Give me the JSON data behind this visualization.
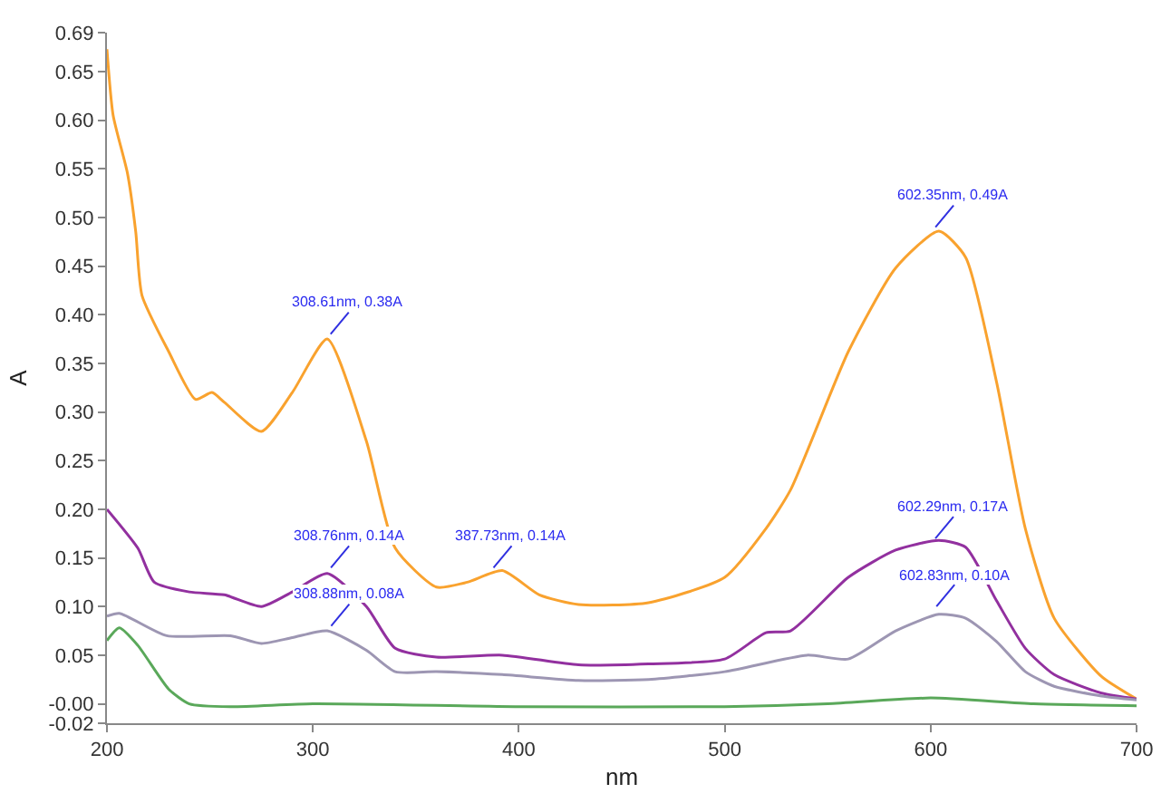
{
  "chart_data": {
    "type": "line",
    "xlabel": "nm",
    "ylabel": "A",
    "xlim": [
      200,
      700
    ],
    "xticks": [
      200,
      300,
      400,
      500,
      600,
      700
    ],
    "ylim": [
      -0.02,
      0.69
    ],
    "yticks": [
      {
        "value": -0.02,
        "label": "-0.02"
      },
      {
        "value": 0,
        "label": "-0.00"
      },
      0.05,
      {
        "value": 0.1,
        "label": "0.10"
      },
      0.15,
      {
        "value": 0.2,
        "label": "0.20"
      },
      0.25,
      {
        "value": 0.3,
        "label": "0.30"
      },
      0.35,
      {
        "value": 0.4,
        "label": "0.40"
      },
      0.45,
      {
        "value": 0.5,
        "label": "0.50"
      },
      0.55,
      {
        "value": 0.6,
        "label": "0.60"
      },
      0.65,
      0.69
    ],
    "marker": "none",
    "line_style": "solid",
    "series": [
      {
        "color": "#f9a22e",
        "x": [
          200,
          203,
          210,
          214,
          217,
          230,
          243,
          251,
          257,
          275,
          290,
          307,
          326,
          340,
          360,
          375,
          392,
          410,
          429,
          463,
          500,
          520,
          532,
          560,
          583,
          604,
          617,
          632,
          646,
          660,
          683,
          700
        ],
        "values": [
          0.673,
          0.605,
          0.545,
          0.485,
          0.42,
          0.362,
          0.313,
          0.32,
          0.31,
          0.28,
          0.32,
          0.375,
          0.27,
          0.16,
          0.12,
          0.125,
          0.137,
          0.112,
          0.102,
          0.104,
          0.13,
          0.18,
          0.22,
          0.362,
          0.448,
          0.486,
          0.459,
          0.331,
          0.18,
          0.088,
          0.028,
          0.005
        ]
      },
      {
        "color": "#92309f",
        "x": [
          200,
          215,
          223,
          240,
          257,
          275,
          290,
          307,
          326,
          340,
          360,
          392,
          429,
          463,
          500,
          520,
          532,
          560,
          583,
          604,
          617,
          632,
          646,
          660,
          683,
          700
        ],
        "values": [
          0.2,
          0.16,
          0.125,
          0.115,
          0.112,
          0.1,
          0.115,
          0.134,
          0.1,
          0.057,
          0.048,
          0.05,
          0.04,
          0.041,
          0.046,
          0.073,
          0.075,
          0.13,
          0.158,
          0.168,
          0.161,
          0.106,
          0.057,
          0.03,
          0.011,
          0.005
        ]
      },
      {
        "color": "#9d96b3",
        "x": [
          200,
          206,
          229,
          260,
          275,
          290,
          307,
          326,
          340,
          360,
          392,
          429,
          463,
          500,
          540,
          560,
          583,
          604,
          617,
          632,
          646,
          660,
          683,
          700
        ],
        "values": [
          0.09,
          0.093,
          0.07,
          0.07,
          0.062,
          0.068,
          0.075,
          0.055,
          0.033,
          0.033,
          0.03,
          0.024,
          0.025,
          0.033,
          0.05,
          0.046,
          0.075,
          0.092,
          0.088,
          0.064,
          0.033,
          0.018,
          0.008,
          0.004
        ]
      },
      {
        "color": "#5aa85a",
        "x": [
          200,
          206,
          215,
          230,
          240,
          260,
          300,
          400,
          500,
          550,
          600,
          650,
          700
        ],
        "values": [
          0.065,
          0.078,
          0.06,
          0.015,
          0.0,
          -0.003,
          0.0,
          -0.003,
          -0.003,
          0.0,
          0.006,
          0.0,
          -0.002
        ]
      }
    ],
    "annotations": [
      {
        "text": "308.61nm, 0.38A",
        "x": 308.61,
        "y": 0.38
      },
      {
        "text": "387.73nm, 0.14A",
        "x": 387.73,
        "y": 0.14
      },
      {
        "text": "602.35nm, 0.49A",
        "x": 602.35,
        "y": 0.49
      },
      {
        "text": "308.76nm, 0.14A",
        "x": 308.76,
        "y": 0.14
      },
      {
        "text": "308.88nm, 0.08A",
        "x": 308.88,
        "y": 0.08
      },
      {
        "text": "602.29nm, 0.17A",
        "x": 602.29,
        "y": 0.17
      },
      {
        "text": "602.83nm, 0.10A",
        "x": 602.83,
        "y": 0.1
      }
    ]
  }
}
